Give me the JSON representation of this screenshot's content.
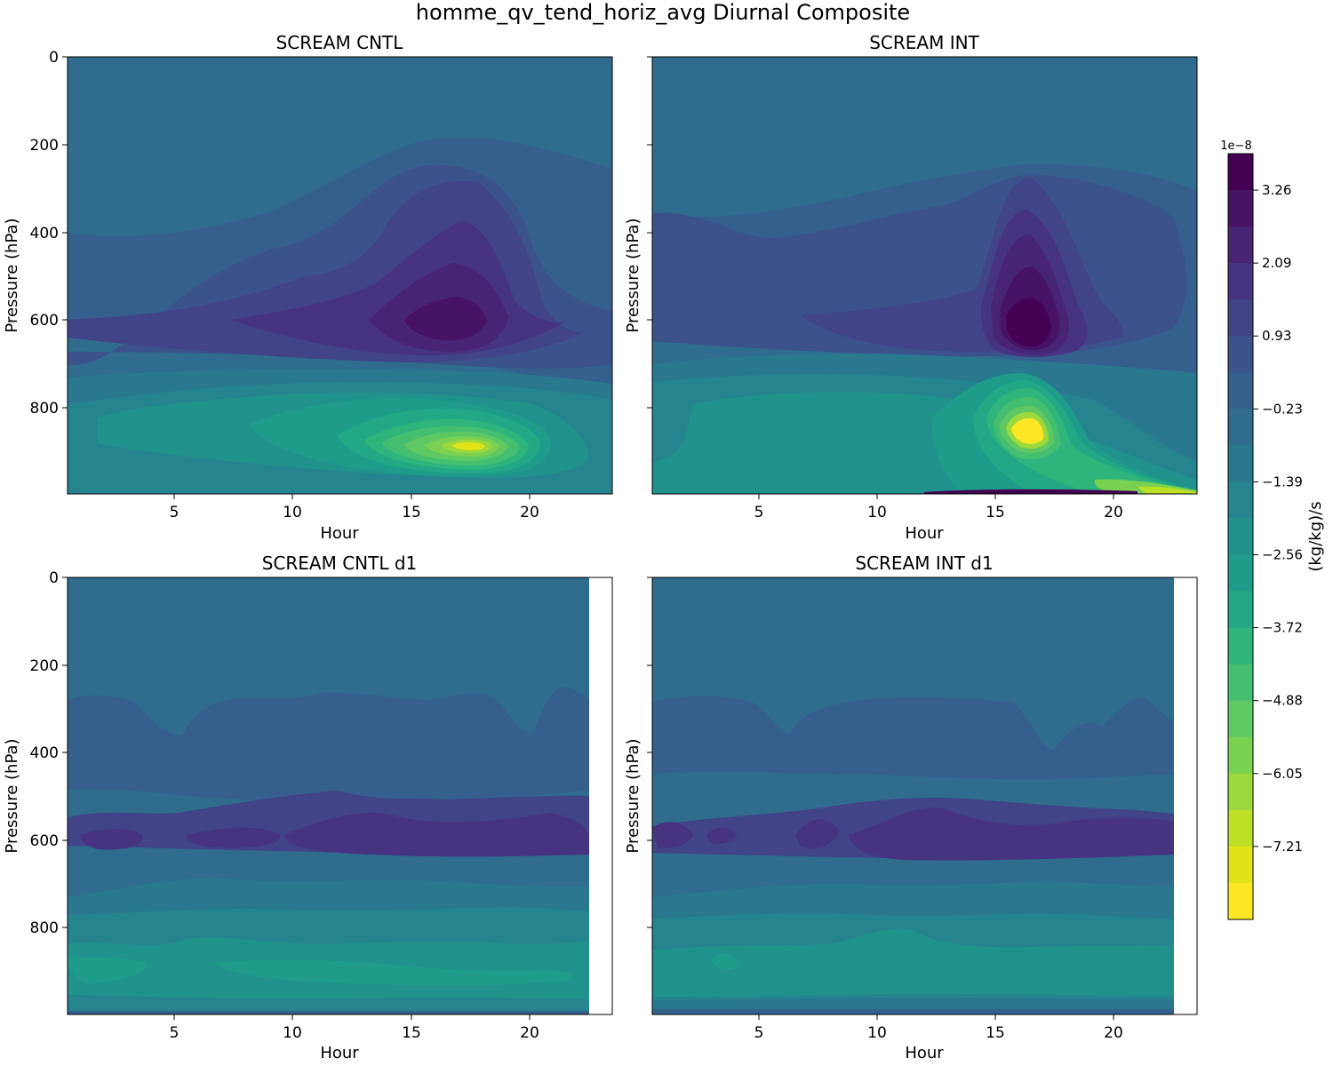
{
  "figure": {
    "title": "homme_qv_tend_horiz_avg Diurnal Composite"
  },
  "colorbar": {
    "label": "(kg/kg)/s",
    "offset_text": "1e−8",
    "ticks": [
      "3.26",
      "2.09",
      "0.93",
      "−0.23",
      "−1.39",
      "−2.56",
      "−3.72",
      "−4.88",
      "−6.05",
      "−7.21"
    ],
    "colors": [
      "#440154",
      "#471365",
      "#482475",
      "#463480",
      "#414487",
      "#3b528b",
      "#355f8d",
      "#2f6c8e",
      "#2a788e",
      "#25848e",
      "#21918c",
      "#1e9c89",
      "#22a884",
      "#2fb47c",
      "#44bf70",
      "#5ec962",
      "#7ad151",
      "#9bd93c",
      "#bddf26",
      "#dfe318",
      "#fde725"
    ]
  },
  "chart_data": [
    {
      "type": "contour",
      "title": "SCREAM CNTL",
      "xlabel": "Hour",
      "ylabel": "Pressure (hPa)",
      "x_ticks": [
        "5",
        "10",
        "15",
        "20"
      ],
      "y_ticks": [
        "0",
        "200",
        "400",
        "600",
        "800"
      ],
      "xlim": [
        0.5,
        23.5
      ],
      "ylim": [
        1000,
        0
      ],
      "features": [
        {
          "value": 2.6,
          "hour": 17.0,
          "pressure": 600
        },
        {
          "value": -7.0,
          "hour": 17.5,
          "pressure": 890
        },
        {
          "value": -3.0,
          "hour": 13.0,
          "pressure": 850
        }
      ]
    },
    {
      "type": "contour",
      "title": "SCREAM INT",
      "xlabel": "Hour",
      "ylabel": "Pressure (hPa)",
      "x_ticks": [
        "5",
        "10",
        "15",
        "20"
      ],
      "y_ticks": [
        "0",
        "200",
        "400",
        "600",
        "800"
      ],
      "xlim": [
        0.5,
        23.5
      ],
      "ylim": [
        1000,
        0
      ],
      "features": [
        {
          "value": 3.5,
          "hour": 16.0,
          "pressure": 610
        },
        {
          "value": -7.2,
          "hour": 16.0,
          "pressure": 860
        },
        {
          "value": -6.5,
          "hour": 22.5,
          "pressure": 990
        }
      ]
    },
    {
      "type": "contour",
      "title": "SCREAM CNTL d1",
      "xlabel": "Hour",
      "ylabel": "Pressure (hPa)",
      "x_ticks": [
        "5",
        "10",
        "15",
        "20"
      ],
      "y_ticks": [
        "0",
        "200",
        "400",
        "600",
        "800"
      ],
      "xlim": [
        0.5,
        23.5
      ],
      "ylim": [
        1000,
        0
      ],
      "data_xmax": 22.5,
      "features": [
        {
          "value": 1.5,
          "hour": 12.0,
          "pressure": 595
        },
        {
          "value": -2.8,
          "hour": 12.0,
          "pressure": 910
        }
      ]
    },
    {
      "type": "contour",
      "title": "SCREAM INT d1",
      "xlabel": "Hour",
      "ylabel": "Pressure (hPa)",
      "x_ticks": [
        "5",
        "10",
        "15",
        "20"
      ],
      "y_ticks": [
        "0",
        "200",
        "400",
        "600",
        "800"
      ],
      "xlim": [
        0.5,
        23.5
      ],
      "ylim": [
        1000,
        0
      ],
      "data_xmax": 22.5,
      "features": [
        {
          "value": 1.5,
          "hour": 12.0,
          "pressure": 595
        },
        {
          "value": -2.8,
          "hour": 12.0,
          "pressure": 910
        }
      ]
    }
  ]
}
